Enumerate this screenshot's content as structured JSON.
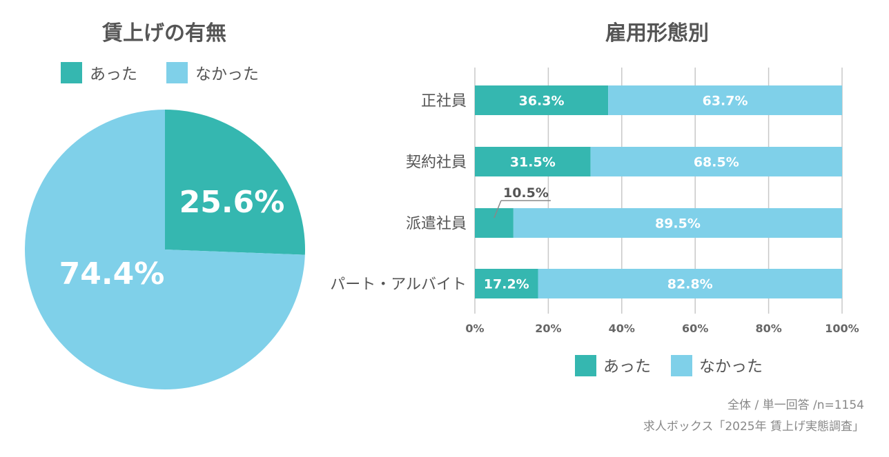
{
  "colors": {
    "yes": "#35b7b0",
    "no": "#7fd0e9",
    "text": "#555555",
    "label_white": "#ffffff",
    "grid": "#c8c8c8"
  },
  "footnote": {
    "line1": "全体 / 単一回答 /n=1154",
    "line2": "求人ボックス「2025年 賃上げ実態調査」"
  },
  "chart_data": [
    {
      "type": "pie",
      "title": "賃上げの有無",
      "legend_position": "top",
      "slices": [
        {
          "name": "あった",
          "value": 25.6,
          "label": "25.6%"
        },
        {
          "name": "なかった",
          "value": 74.4,
          "label": "74.4%"
        }
      ]
    },
    {
      "type": "bar",
      "orientation": "horizontal",
      "stacked": true,
      "title": "雇用形態別",
      "legend_position": "bottom",
      "grid": true,
      "xlim": [
        0,
        100
      ],
      "x_ticks": [
        "0%",
        "20%",
        "40%",
        "60%",
        "80%",
        "100%"
      ],
      "categories": [
        "正社員",
        "契約社員",
        "派遣社員",
        "パート・アルバイト"
      ],
      "series": [
        {
          "name": "あった",
          "values": [
            36.3,
            31.5,
            10.5,
            17.2
          ],
          "labels": [
            "36.3%",
            "31.5%",
            "10.5%",
            "17.2%"
          ]
        },
        {
          "name": "なかった",
          "values": [
            63.7,
            68.5,
            89.5,
            82.8
          ],
          "labels": [
            "63.7%",
            "68.5%",
            "89.5%",
            "82.8%"
          ]
        }
      ]
    }
  ]
}
